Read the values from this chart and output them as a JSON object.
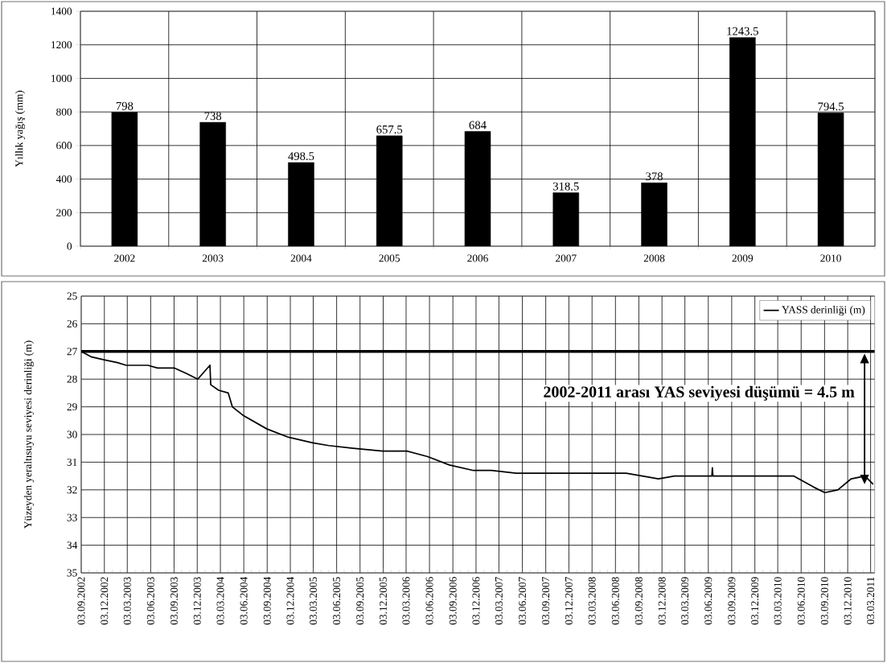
{
  "chart_data": [
    {
      "type": "bar",
      "ylabel": "Yıllık yağış (mm)",
      "categories": [
        "2002",
        "2003",
        "2004",
        "2005",
        "2006",
        "2007",
        "2008",
        "2009",
        "2010"
      ],
      "values": [
        798,
        738,
        498.5,
        657.5,
        684,
        318.5,
        378,
        1243.5,
        794.5
      ],
      "color": "#000000",
      "data_labels": true,
      "grid": true,
      "ylim": [
        0,
        1400
      ],
      "yticks": [
        0,
        200,
        400,
        600,
        800,
        1000,
        1200,
        1400
      ]
    },
    {
      "type": "line",
      "ylabel": "Yüzeyden yeraltısuyu seviyesi derinliği (m)",
      "series": [
        {
          "name": "YASS derinliği (m)",
          "color": "#000000",
          "x": [
            "2002-09-03",
            "2002-10-14",
            "2002-12-01",
            "2003-01-23",
            "2003-02-27",
            "2003-03-05",
            "2003-05-23",
            "2003-06-30",
            "2003-09-05",
            "2003-10-22",
            "2003-12-05",
            "2004-01-22",
            "2004-01-25",
            "2004-02-25",
            "2004-04-03",
            "2004-04-19",
            "2004-05-30",
            "2004-09-02",
            "2004-11-26",
            "2005-03-01",
            "2005-05-03",
            "2005-08-06",
            "2005-12-01",
            "2006-03-06",
            "2006-05-27",
            "2006-08-20",
            "2006-11-23",
            "2007-02-01",
            "2007-05-10",
            "2007-11-15",
            "2008-07-15",
            "2008-09-17",
            "2008-11-19",
            "2009-01-21",
            "2009-06-17",
            "2009-06-19",
            "2009-06-21",
            "2010-05-04",
            "2010-07-22",
            "2010-09-04",
            "2010-10-25",
            "2010-12-17",
            "2011-02-09",
            "2011-03-13"
          ],
          "values": [
            27.0,
            27.2,
            27.3,
            27.4,
            27.5,
            27.5,
            27.5,
            27.6,
            27.6,
            27.8,
            28.0,
            27.5,
            28.2,
            28.4,
            28.5,
            29.0,
            29.3,
            29.8,
            30.1,
            30.3,
            30.4,
            30.5,
            30.6,
            30.6,
            30.8,
            31.1,
            31.3,
            31.3,
            31.4,
            31.4,
            31.4,
            31.5,
            31.6,
            31.5,
            31.5,
            31.2,
            31.5,
            31.5,
            31.9,
            32.1,
            32.0,
            31.6,
            31.5,
            31.8
          ]
        }
      ],
      "legend": "top right",
      "grid": true,
      "ref_lines": [
        {
          "axis": "y",
          "value": 27,
          "color": "#000000"
        }
      ],
      "annotations": [
        "2002-2011 arası YAS seviyesi düşümü = 4.5 m"
      ],
      "xlim": [
        "2002-09-03",
        "2011-03-19"
      ],
      "ylim": [
        35,
        25
      ],
      "yticks": [
        25,
        26,
        27,
        28,
        29,
        30,
        31,
        32,
        33,
        34,
        35
      ],
      "xticks": [
        {
          "value": "2002-09-03",
          "label": "03.09.2002"
        },
        {
          "value": "2002-10-03",
          "label": null
        },
        {
          "value": "2002-11-03",
          "label": null
        },
        {
          "value": "2002-12-03",
          "label": "03.12.2002"
        },
        {
          "value": "2003-01-03",
          "label": null
        },
        {
          "value": "2003-02-03",
          "label": null
        },
        {
          "value": "2003-03-03",
          "label": "03.03.2003"
        },
        {
          "value": "2003-04-03",
          "label": null
        },
        {
          "value": "2003-05-03",
          "label": null
        },
        {
          "value": "2003-06-03",
          "label": "03.06.2003"
        },
        {
          "value": "2003-07-03",
          "label": null
        },
        {
          "value": "2003-08-03",
          "label": null
        },
        {
          "value": "2003-09-03",
          "label": "03.09.2003"
        },
        {
          "value": "2003-10-03",
          "label": null
        },
        {
          "value": "2003-11-03",
          "label": null
        },
        {
          "value": "2003-12-03",
          "label": "03.12.2003"
        },
        {
          "value": "2004-01-03",
          "label": null
        },
        {
          "value": "2004-02-03",
          "label": null
        },
        {
          "value": "2004-03-03",
          "label": "03.03.2004"
        },
        {
          "value": "2004-04-03",
          "label": null
        },
        {
          "value": "2004-05-03",
          "label": null
        },
        {
          "value": "2004-06-03",
          "label": "03.06.2004"
        },
        {
          "value": "2004-07-03",
          "label": null
        },
        {
          "value": "2004-08-03",
          "label": null
        },
        {
          "value": "2004-09-03",
          "label": "03.09.2004"
        },
        {
          "value": "2004-10-03",
          "label": null
        },
        {
          "value": "2004-11-03",
          "label": null
        },
        {
          "value": "2004-12-03",
          "label": "03.12.2004"
        },
        {
          "value": "2005-01-03",
          "label": null
        },
        {
          "value": "2005-02-03",
          "label": null
        },
        {
          "value": "2005-03-03",
          "label": "03.03.2005"
        },
        {
          "value": "2005-04-03",
          "label": null
        },
        {
          "value": "2005-05-03",
          "label": null
        },
        {
          "value": "2005-06-03",
          "label": "03.06.2005"
        },
        {
          "value": "2005-07-03",
          "label": null
        },
        {
          "value": "2005-08-03",
          "label": null
        },
        {
          "value": "2005-09-03",
          "label": "03.09.2005"
        },
        {
          "value": "2005-10-03",
          "label": null
        },
        {
          "value": "2005-11-03",
          "label": null
        },
        {
          "value": "2005-12-03",
          "label": "03.12.2005"
        },
        {
          "value": "2006-01-03",
          "label": null
        },
        {
          "value": "2006-02-03",
          "label": null
        },
        {
          "value": "2006-03-03",
          "label": "03.03.2006"
        },
        {
          "value": "2006-04-03",
          "label": null
        },
        {
          "value": "2006-05-03",
          "label": null
        },
        {
          "value": "2006-06-03",
          "label": "03.06.2006"
        },
        {
          "value": "2006-07-03",
          "label": null
        },
        {
          "value": "2006-08-03",
          "label": null
        },
        {
          "value": "2006-09-03",
          "label": "03.09.2006"
        },
        {
          "value": "2006-10-03",
          "label": null
        },
        {
          "value": "2006-11-03",
          "label": null
        },
        {
          "value": "2006-12-03",
          "label": "03.12.2006"
        },
        {
          "value": "2007-01-03",
          "label": null
        },
        {
          "value": "2007-02-03",
          "label": null
        },
        {
          "value": "2007-03-03",
          "label": "03.03.2007"
        },
        {
          "value": "2007-04-03",
          "label": null
        },
        {
          "value": "2007-05-03",
          "label": null
        },
        {
          "value": "2007-06-03",
          "label": "03.06.2007"
        },
        {
          "value": "2007-07-03",
          "label": null
        },
        {
          "value": "2007-08-03",
          "label": null
        },
        {
          "value": "2007-09-03",
          "label": "03.09.2007"
        },
        {
          "value": "2007-10-03",
          "label": null
        },
        {
          "value": "2007-11-03",
          "label": null
        },
        {
          "value": "2007-12-03",
          "label": "03.12.2007"
        },
        {
          "value": "2008-01-03",
          "label": null
        },
        {
          "value": "2008-02-03",
          "label": null
        },
        {
          "value": "2008-03-03",
          "label": "03.03.2008"
        },
        {
          "value": "2008-04-03",
          "label": null
        },
        {
          "value": "2008-05-03",
          "label": null
        },
        {
          "value": "2008-06-03",
          "label": "03.06.2008"
        },
        {
          "value": "2008-07-03",
          "label": null
        },
        {
          "value": "2008-08-03",
          "label": null
        },
        {
          "value": "2008-09-03",
          "label": "03.09.2008"
        },
        {
          "value": "2008-10-03",
          "label": null
        },
        {
          "value": "2008-11-03",
          "label": null
        },
        {
          "value": "2008-12-03",
          "label": "03.12.2008"
        },
        {
          "value": "2009-01-03",
          "label": null
        },
        {
          "value": "2009-02-03",
          "label": null
        },
        {
          "value": "2009-03-03",
          "label": "03.03.2009"
        },
        {
          "value": "2009-04-03",
          "label": null
        },
        {
          "value": "2009-05-03",
          "label": null
        },
        {
          "value": "2009-06-03",
          "label": "03.06.2009"
        },
        {
          "value": "2009-07-03",
          "label": null
        },
        {
          "value": "2009-08-03",
          "label": null
        },
        {
          "value": "2009-09-03",
          "label": "03.09.2009"
        },
        {
          "value": "2009-10-03",
          "label": null
        },
        {
          "value": "2009-11-03",
          "label": null
        },
        {
          "value": "2009-12-03",
          "label": "03.12.2009"
        },
        {
          "value": "2010-01-03",
          "label": null
        },
        {
          "value": "2010-02-03",
          "label": null
        },
        {
          "value": "2010-03-03",
          "label": "03.03.2010"
        },
        {
          "value": "2010-04-03",
          "label": null
        },
        {
          "value": "2010-05-03",
          "label": null
        },
        {
          "value": "2010-06-03",
          "label": "03.06.2010"
        },
        {
          "value": "2010-07-03",
          "label": null
        },
        {
          "value": "2010-08-03",
          "label": null
        },
        {
          "value": "2010-09-03",
          "label": "03.09.2010"
        },
        {
          "value": "2010-10-03",
          "label": null
        },
        {
          "value": "2010-11-03",
          "label": null
        },
        {
          "value": "2010-12-03",
          "label": "03.12.2010"
        },
        {
          "value": "2011-01-03",
          "label": null
        },
        {
          "value": "2011-02-03",
          "label": null
        },
        {
          "value": "2011-03-03",
          "label": "03.03.2011"
        }
      ]
    }
  ]
}
